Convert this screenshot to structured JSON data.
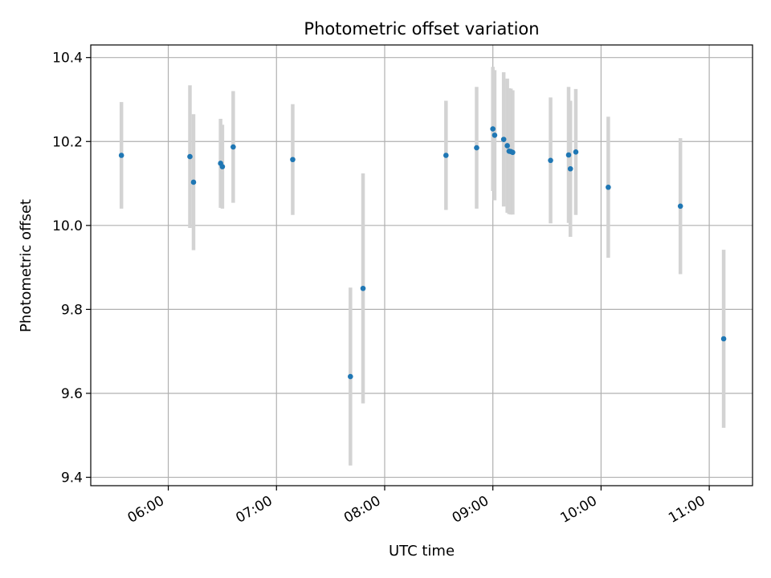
{
  "chart_data": {
    "type": "scatter",
    "title": "Photometric offset variation",
    "xlabel": "UTC time",
    "ylabel": "Photometric offset",
    "x_ticks": [
      "06:00",
      "07:00",
      "08:00",
      "09:00",
      "10:00",
      "11:00"
    ],
    "y_ticks": [
      "9.4",
      "9.6",
      "9.8",
      "10.0",
      "10.2",
      "10.4"
    ],
    "xlim": [
      "05:17",
      "11:24"
    ],
    "ylim": [
      9.38,
      10.43
    ],
    "grid": true,
    "legend": "none",
    "colors": {
      "points": "#1f77b4",
      "errorbars": "#d3d3d3",
      "grid": "#b0b0b0"
    },
    "points": [
      {
        "x": "05:34",
        "y": 10.167,
        "err": 0.127
      },
      {
        "x": "06:12",
        "y": 10.164,
        "err": 0.17
      },
      {
        "x": "06:14",
        "y": 10.103,
        "err": 0.162
      },
      {
        "x": "06:29",
        "y": 10.148,
        "err": 0.106
      },
      {
        "x": "06:30",
        "y": 10.14,
        "err": 0.1
      },
      {
        "x": "06:36",
        "y": 10.187,
        "err": 0.133
      },
      {
        "x": "07:09",
        "y": 10.157,
        "err": 0.132
      },
      {
        "x": "07:41",
        "y": 9.64,
        "err": 0.212
      },
      {
        "x": "07:48",
        "y": 9.85,
        "err": 0.274
      },
      {
        "x": "08:34",
        "y": 10.167,
        "err": 0.13
      },
      {
        "x": "08:51",
        "y": 10.185,
        "err": 0.145
      },
      {
        "x": "09:00",
        "y": 10.23,
        "err": 0.148
      },
      {
        "x": "09:01",
        "y": 10.215,
        "err": 0.155
      },
      {
        "x": "09:06",
        "y": 10.205,
        "err": 0.16
      },
      {
        "x": "09:08",
        "y": 10.19,
        "err": 0.16
      },
      {
        "x": "09:09",
        "y": 10.177,
        "err": 0.15
      },
      {
        "x": "09:10",
        "y": 10.176,
        "err": 0.15
      },
      {
        "x": "09:11",
        "y": 10.174,
        "err": 0.148
      },
      {
        "x": "09:32",
        "y": 10.155,
        "err": 0.15
      },
      {
        "x": "09:42",
        "y": 10.168,
        "err": 0.162
      },
      {
        "x": "09:43",
        "y": 10.135,
        "err": 0.162
      },
      {
        "x": "09:46",
        "y": 10.175,
        "err": 0.15
      },
      {
        "x": "10:04",
        "y": 10.091,
        "err": 0.168
      },
      {
        "x": "10:44",
        "y": 10.046,
        "err": 0.162
      },
      {
        "x": "11:08",
        "y": 9.73,
        "err": 0.212
      }
    ]
  }
}
